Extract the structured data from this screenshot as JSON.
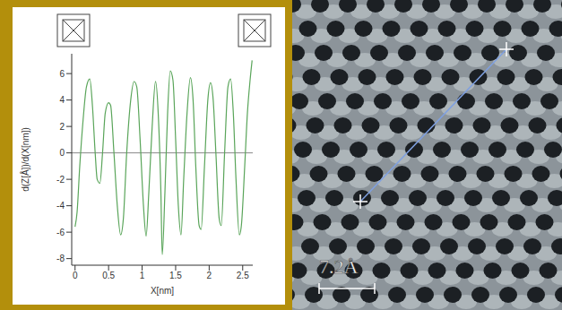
{
  "chart_data": {
    "type": "line",
    "x_label": "X[nm]",
    "y_label": "d(Z[Å])/d(X[nm])",
    "color": "#5aa55a",
    "xlim": [
      -0.05,
      2.65
    ],
    "xticks": [
      0,
      0.5,
      1,
      1.5,
      2,
      2.5
    ],
    "ylim": [
      -8.5,
      7.5
    ],
    "yticks": [
      -8,
      -6,
      -4,
      -2,
      0,
      2,
      4,
      6
    ],
    "grid": false,
    "x": [
      0,
      0.03,
      0.07,
      0.12,
      0.17,
      0.22,
      0.26,
      0.3,
      0.33,
      0.37,
      0.41,
      0.45,
      0.5,
      0.53,
      0.58,
      0.63,
      0.68,
      0.72,
      0.77,
      0.83,
      0.88,
      0.92,
      0.97,
      1.02,
      1.06,
      1.1,
      1.15,
      1.2,
      1.24,
      1.28,
      1.3,
      1.34,
      1.38,
      1.42,
      1.46,
      1.5,
      1.54,
      1.58,
      1.62,
      1.67,
      1.72,
      1.76,
      1.8,
      1.85,
      1.88,
      1.93,
      1.98,
      2.02,
      2.06,
      2.1,
      2.15,
      2.18,
      2.23,
      2.28,
      2.32,
      2.36,
      2.4,
      2.45,
      2.48,
      2.53,
      2.57,
      2.61,
      2.64
    ],
    "values": [
      -5.6,
      -4.5,
      -1,
      2.5,
      5,
      5.6,
      3.5,
      0,
      -2,
      -2.3,
      0,
      3,
      3.8,
      3.6,
      0,
      -4,
      -6.2,
      -5,
      0,
      4,
      5.4,
      5,
      1,
      -4,
      -6.3,
      -3,
      2,
      5.4,
      3,
      -3,
      -7.7,
      -3,
      3,
      6.2,
      5.5,
      1,
      -4,
      -6.2,
      -2,
      3,
      5.7,
      4,
      -1,
      -5.5,
      -5.8,
      -1,
      4,
      5.3,
      4,
      0,
      -5,
      -5.5,
      0,
      5,
      5.6,
      3,
      -2,
      -6.2,
      -5.5,
      -1,
      3,
      5.5,
      7
    ]
  },
  "image": {
    "scale_label": "7.2Å"
  }
}
